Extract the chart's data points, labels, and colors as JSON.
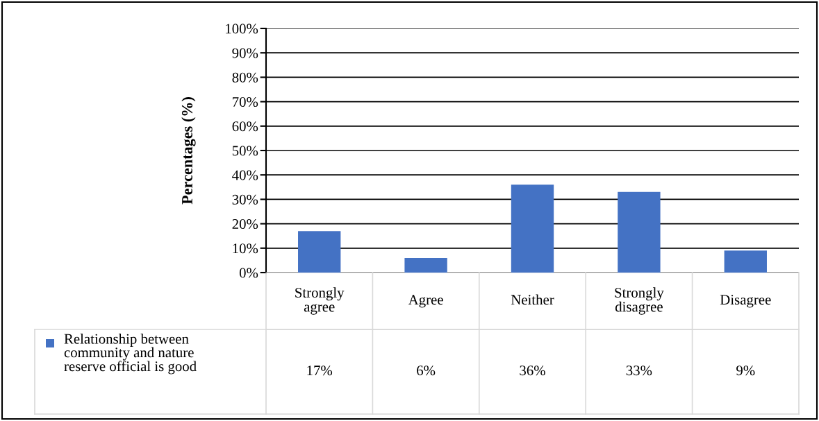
{
  "chart_data": {
    "type": "bar",
    "ylabel": "Percentages (%)",
    "categories": [
      "Strongly\nagree",
      "Agree",
      "Neither",
      "Strongly\ndisagree",
      "Disagree"
    ],
    "series": [
      {
        "name": "Relationship between\ncommunity and nature\nreserve official is good",
        "color": "#4472c4",
        "values": [
          17,
          6,
          36,
          33,
          9
        ],
        "value_labels": [
          "17%",
          "6%",
          "36%",
          "33%",
          "9%"
        ]
      }
    ],
    "ylim": [
      0,
      100
    ],
    "yticks": [
      {
        "value": 0,
        "label": "0%"
      },
      {
        "value": 10,
        "label": "10%"
      },
      {
        "value": 20,
        "label": "20%"
      },
      {
        "value": 30,
        "label": "30%"
      },
      {
        "value": 40,
        "label": "40%"
      },
      {
        "value": 50,
        "label": "50%"
      },
      {
        "value": 60,
        "label": "60%"
      },
      {
        "value": 70,
        "label": "70%"
      },
      {
        "value": 80,
        "label": "80%"
      },
      {
        "value": 90,
        "label": "90%"
      },
      {
        "value": 100,
        "label": "100%"
      }
    ],
    "grid": "y",
    "legend": "bottom left"
  }
}
